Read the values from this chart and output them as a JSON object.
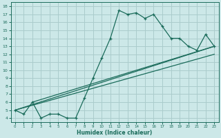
{
  "xlabel": "Humidex (Indice chaleur)",
  "bg_color": "#cce8e8",
  "grid_color": "#aacccc",
  "line_color": "#1a6b5a",
  "xlim": [
    -0.5,
    23.5
  ],
  "ylim": [
    3.5,
    18.5
  ],
  "xticks": [
    0,
    1,
    2,
    3,
    4,
    5,
    6,
    7,
    8,
    9,
    10,
    11,
    12,
    13,
    14,
    15,
    16,
    17,
    18,
    19,
    20,
    21,
    22,
    23
  ],
  "yticks": [
    4,
    5,
    6,
    7,
    8,
    9,
    10,
    11,
    12,
    13,
    14,
    15,
    16,
    17,
    18
  ],
  "series1_x": [
    0,
    1,
    2,
    3,
    4,
    5,
    6,
    7,
    8,
    9,
    10,
    11,
    12,
    13,
    14,
    15,
    16,
    17,
    18,
    19,
    20,
    21,
    22,
    23
  ],
  "series1_y": [
    5.0,
    4.5,
    6.0,
    4.0,
    4.5,
    4.5,
    4.0,
    4.0,
    6.5,
    9.0,
    11.5,
    14.0,
    17.5,
    17.0,
    17.2,
    16.5,
    17.0,
    15.5,
    14.0,
    14.0,
    13.0,
    12.5,
    14.5,
    13.0
  ],
  "line1_x": [
    0,
    23
  ],
  "line1_y": [
    5.0,
    12.0
  ],
  "line2_x": [
    0,
    23
  ],
  "line2_y": [
    5.0,
    13.0
  ],
  "line3_x": [
    2,
    23
  ],
  "line3_y": [
    6.0,
    13.0
  ]
}
